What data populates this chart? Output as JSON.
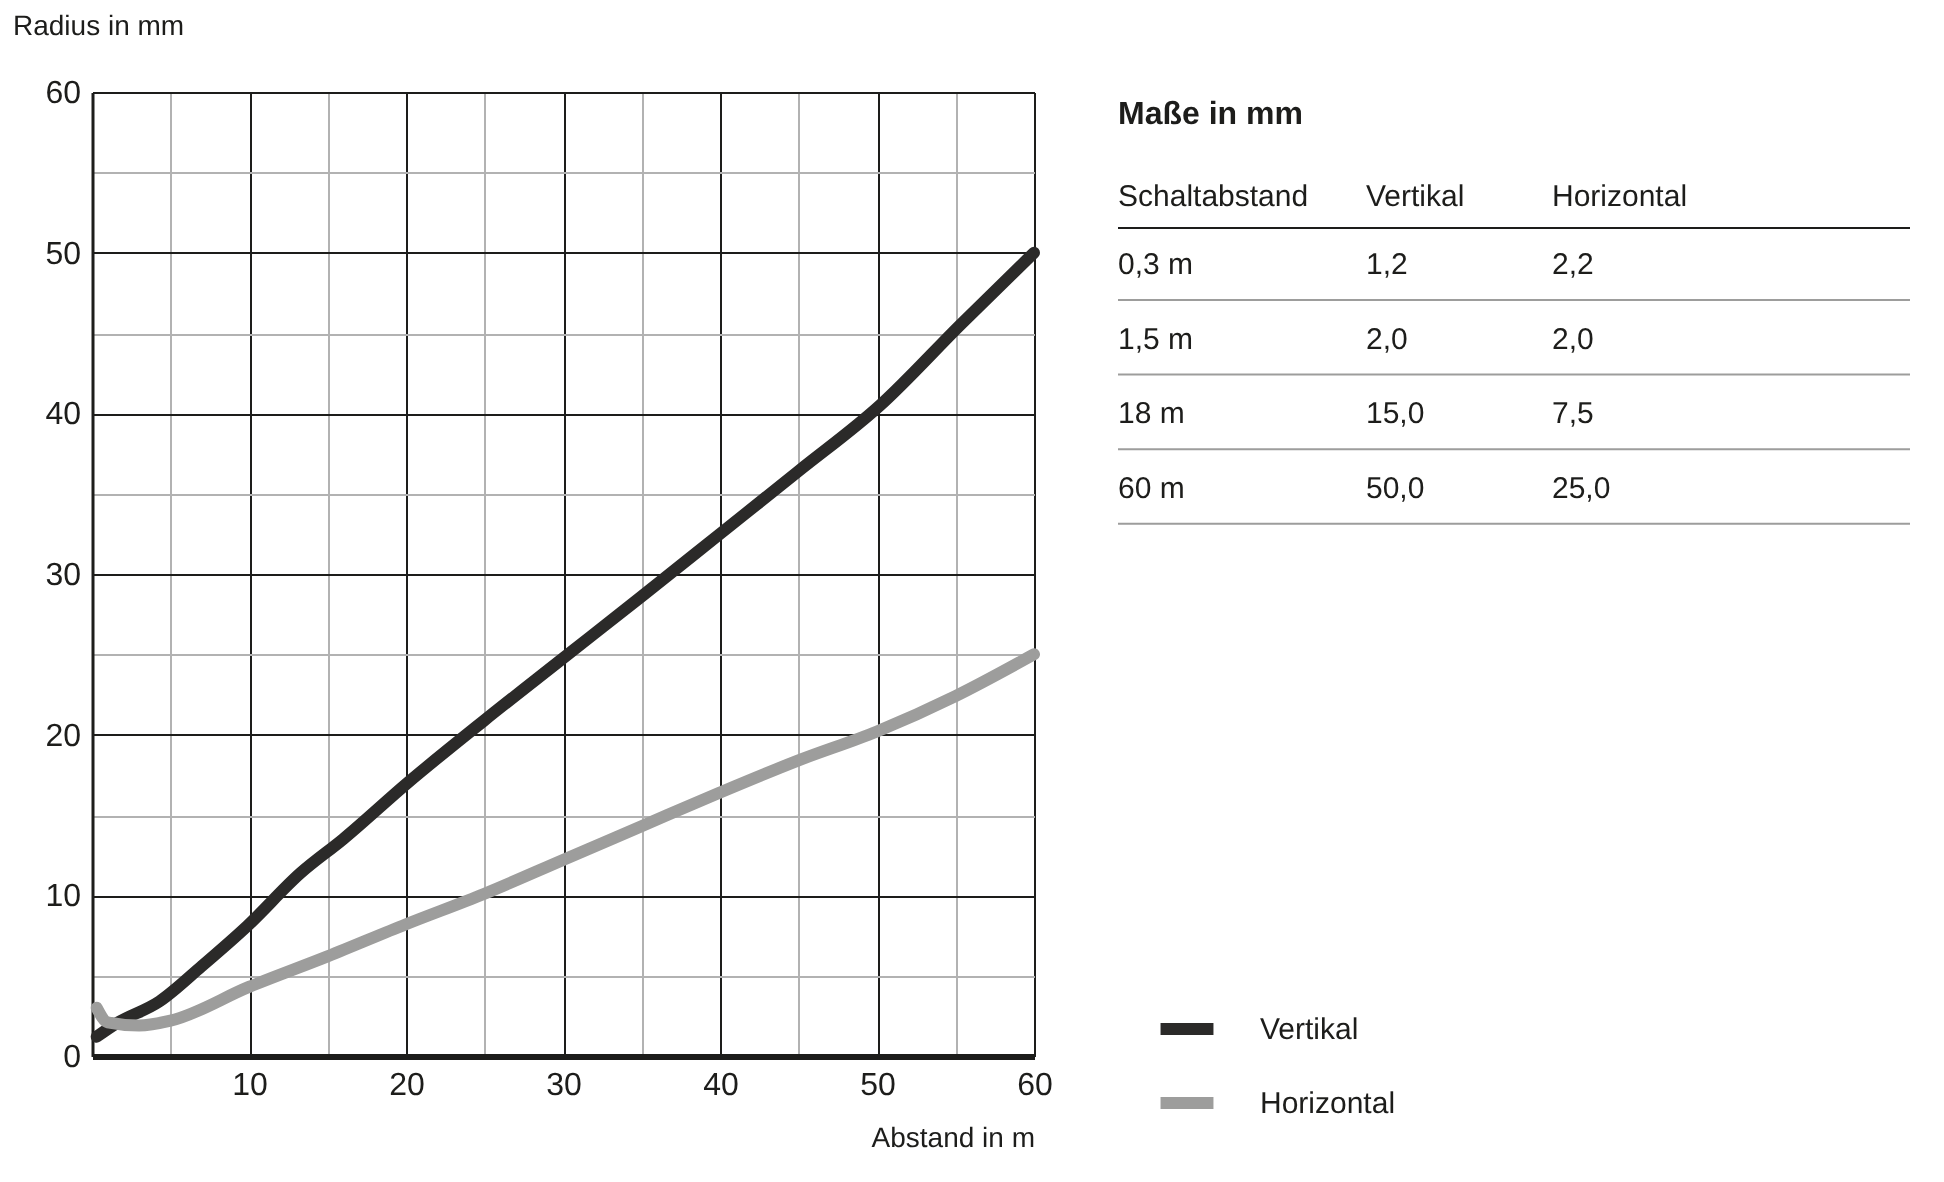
{
  "chart_data": {
    "type": "line",
    "xlabel": "Abstand in m",
    "ylabel": "Radius in mm",
    "xlim": [
      0,
      60
    ],
    "ylim": [
      0,
      60
    ],
    "xticks": [
      {
        "value": 0,
        "label": null
      },
      {
        "value": 5,
        "label": null
      },
      10,
      {
        "value": 15,
        "label": null
      },
      20,
      {
        "value": 25,
        "label": null
      },
      30,
      {
        "value": 35,
        "label": null
      },
      40,
      {
        "value": 45,
        "label": null
      },
      50,
      {
        "value": 55,
        "label": null
      },
      60
    ],
    "yticks": [
      0,
      {
        "value": 5,
        "label": null
      },
      10,
      {
        "value": 15,
        "label": null
      },
      20,
      {
        "value": 25,
        "label": null
      },
      30,
      {
        "value": 35,
        "label": null
      },
      40,
      {
        "value": 45,
        "label": null
      },
      50,
      {
        "value": 55,
        "label": null
      },
      60
    ],
    "grid": true,
    "legend": "bottom right",
    "line_style": "solid",
    "marker": "none",
    "series": [
      {
        "name": "Vertikal",
        "color": "#2b2a29",
        "x": [
          0.3,
          1.5,
          4.3,
          7,
          9.9,
          13.3,
          16,
          20.1,
          25,
          29.8,
          35,
          40,
          45,
          50.2,
          55.3,
          60
        ],
        "values": [
          1.2,
          2.0,
          3.4,
          5.6,
          8.1,
          11.4,
          13.5,
          17.0,
          20.9,
          24.6,
          28.6,
          32.5,
          36.4,
          40.5,
          45.5,
          50.0
        ]
      },
      {
        "name": "Horizontal",
        "color": "#9d9d9c",
        "x": [
          0.3,
          1.0,
          3,
          5,
          10,
          15,
          20,
          25,
          30,
          35,
          40,
          45,
          50,
          55,
          60
        ],
        "values": [
          3.0,
          2.1,
          1.9,
          2.2,
          4.3,
          6.2,
          8.2,
          10.1,
          12.2,
          14.3,
          16.4,
          18.4,
          20.2,
          22.4,
          25.0
        ]
      }
    ],
    "annotations": [
      "Maße in mm",
      "Schaltabstand",
      "Vertikal",
      "Horizontal",
      "0,3 m",
      "1,2",
      "2,2",
      "1,5 m",
      "2,0",
      "2,0",
      "18 m",
      "15,0",
      "7,5",
      "60 m",
      "50,0",
      "25,0"
    ]
  }
}
